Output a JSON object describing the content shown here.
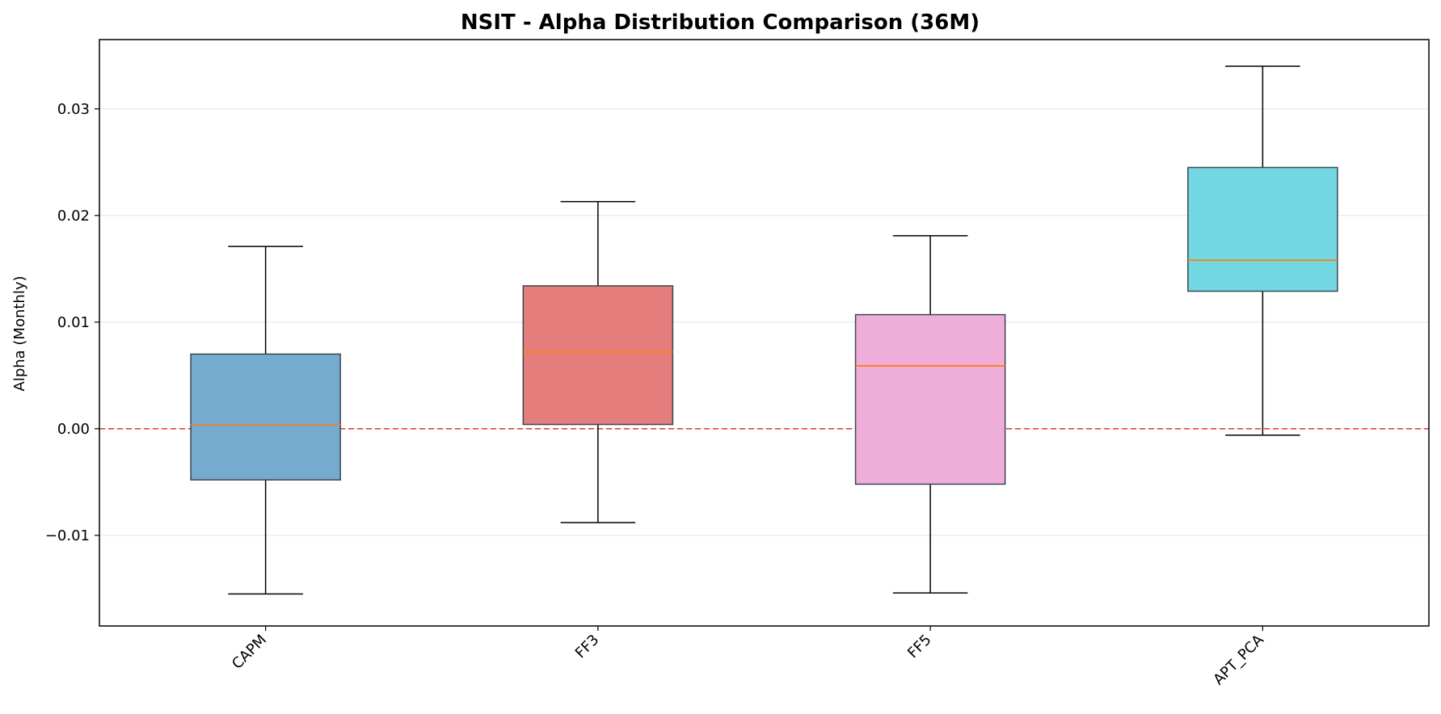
{
  "chart_data": {
    "type": "box",
    "title": "NSIT - Alpha Distribution Comparison (36M)",
    "xlabel": "",
    "ylabel": "Alpha (Monthly)",
    "ylim": [
      -0.0185,
      0.0365
    ],
    "yticks": [
      -0.01,
      0.0,
      0.01,
      0.02,
      0.03
    ],
    "ytick_labels": [
      "−0.01",
      "0.00",
      "0.01",
      "0.02",
      "0.03"
    ],
    "grid": "y",
    "reference_line": {
      "y": 0.0,
      "color": "#e8423f",
      "style": "dashed"
    },
    "median_color": "#ff7f0e",
    "categories": [
      "CAPM",
      "FF3",
      "FF5",
      "APT_PCA"
    ],
    "boxes": [
      {
        "name": "CAPM",
        "whisker_low": -0.0155,
        "q1": -0.0048,
        "median": 0.0004,
        "q3": 0.007,
        "whisker_high": 0.0171,
        "color": "#76abd0"
      },
      {
        "name": "FF3",
        "whisker_low": -0.0088,
        "q1": 0.0004,
        "median": 0.0072,
        "q3": 0.0134,
        "whisker_high": 0.0213,
        "color": "#e57d7d"
      },
      {
        "name": "FF5",
        "whisker_low": -0.0154,
        "q1": -0.0052,
        "median": 0.0059,
        "q3": 0.0107,
        "whisker_high": 0.0181,
        "color": "#efadda"
      },
      {
        "name": "APT_PCA",
        "whisker_low": -0.0006,
        "q1": 0.0129,
        "median": 0.0158,
        "q3": 0.0245,
        "whisker_high": 0.034,
        "color": "#73d7e2"
      }
    ]
  }
}
